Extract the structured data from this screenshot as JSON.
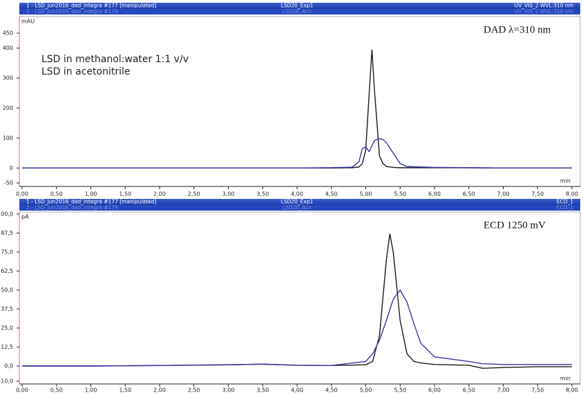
{
  "chart_data": [
    {
      "type": "line",
      "headers": [
        {
          "left": "1 - LSD_jun2016_dad_integra #177 [manipulated]",
          "center": "LSD20_Exp1",
          "right": "UV_VIS_2 WVL:310 nm"
        },
        {
          "left": "2 - LSD_jun2016_dad_integra #179",
          "center": "LSD20_Acn",
          "right": "UV_VIS_2 WVL:310 nm"
        }
      ],
      "title": "DAD λ=310 nm",
      "y_unit": "mAU",
      "x_unit": "min",
      "x": [
        0,
        1,
        2,
        3,
        4,
        4.5,
        4.8,
        4.9,
        4.95,
        5.0,
        5.05,
        5.09,
        5.13,
        5.2,
        5.25,
        5.3,
        5.4,
        5.5,
        5.6,
        6,
        6.5,
        7,
        7.5,
        8
      ],
      "series": [
        {
          "name": "LSD in methanol:water 1:1 v/v",
          "color": "#1a1a1a",
          "values": [
            0,
            0,
            0,
            0,
            0,
            0,
            1,
            3,
            15,
            60,
            250,
            395,
            250,
            40,
            15,
            5,
            2,
            1,
            1,
            1,
            1,
            0,
            0,
            0
          ]
        },
        {
          "name": "LSD in acetonitrile",
          "color": "#3535a8",
          "values": [
            0,
            0,
            0,
            0,
            0,
            1,
            3,
            20,
            65,
            70,
            55,
            75,
            92,
            98,
            95,
            85,
            50,
            15,
            5,
            2,
            1,
            0,
            0,
            0
          ]
        }
      ],
      "xlim": [
        0,
        8
      ],
      "xticks": [
        {
          "value": 0,
          "label": "0,00"
        },
        {
          "value": 0.5,
          "label": "0,50"
        },
        {
          "value": 1,
          "label": "1,00"
        },
        {
          "value": 1.5,
          "label": "1,50"
        },
        {
          "value": 2,
          "label": "2,00"
        },
        {
          "value": 2.5,
          "label": "2,50"
        },
        {
          "value": 3,
          "label": "3,00"
        },
        {
          "value": 3.5,
          "label": "3,50"
        },
        {
          "value": 4,
          "label": "4,00"
        },
        {
          "value": 4.5,
          "label": "4,50"
        },
        {
          "value": 5,
          "label": "5,00"
        },
        {
          "value": 5.5,
          "label": "5,50"
        },
        {
          "value": 6,
          "label": "6,00"
        },
        {
          "value": 6.5,
          "label": "6,50"
        },
        {
          "value": 7,
          "label": "7,00"
        },
        {
          "value": 7.5,
          "label": "7,50"
        },
        {
          "value": 8,
          "label": "8,00"
        }
      ],
      "ylim": [
        -50,
        450
      ],
      "yticks": [
        -50,
        0,
        100,
        200,
        300,
        400,
        450
      ]
    },
    {
      "type": "line",
      "headers": [
        {
          "left": "1 - LSD_jun2016_dad_integra #177 [manipulated]",
          "center": "LSD20_Exp1",
          "right": "ECD_1"
        },
        {
          "left": "2 - LSD_jun2016_dad_integra #179",
          "center": "LSD20_Acn",
          "right": "ECD_1"
        }
      ],
      "title": "ECD 1250  mV",
      "y_unit": "pA",
      "x_unit": "min",
      "x": [
        0,
        1,
        2,
        3,
        3.5,
        4,
        4.5,
        5.0,
        5.1,
        5.2,
        5.3,
        5.35,
        5.4,
        5.5,
        5.6,
        5.7,
        5.8,
        6.0,
        6.5,
        6.7,
        7.0,
        7.5,
        8
      ],
      "series": [
        {
          "name": "LSD in methanol:water 1:1 v/v",
          "color": "#1a1a1a",
          "values": [
            0,
            0,
            0.3,
            0.8,
            1.2,
            0.5,
            0.3,
            0.8,
            3,
            20,
            70,
            87,
            75,
            30,
            8,
            3,
            2,
            1,
            0.5,
            -1.5,
            -1,
            -0.5,
            -0.5
          ]
        },
        {
          "name": "LSD in acetonitrile",
          "color": "#3535a8",
          "values": [
            0,
            0,
            0.3,
            0.8,
            1.2,
            0.5,
            0.3,
            3,
            8,
            17,
            30,
            37,
            44,
            50,
            42,
            28,
            15,
            6,
            3,
            1.5,
            1,
            1,
            1
          ]
        }
      ],
      "xlim": [
        0,
        8
      ],
      "xticks": [
        {
          "value": 0,
          "label": "0,00"
        },
        {
          "value": 0.5,
          "label": "0,50"
        },
        {
          "value": 1,
          "label": "1,00"
        },
        {
          "value": 1.5,
          "label": "1,50"
        },
        {
          "value": 2,
          "label": "2,00"
        },
        {
          "value": 2.5,
          "label": "2,50"
        },
        {
          "value": 3,
          "label": "3,00"
        },
        {
          "value": 3.5,
          "label": "3,50"
        },
        {
          "value": 4,
          "label": "4,00"
        },
        {
          "value": 4.5,
          "label": "4,50"
        },
        {
          "value": 5,
          "label": "5,00"
        },
        {
          "value": 5.5,
          "label": "5,50"
        },
        {
          "value": 6,
          "label": "6,00"
        },
        {
          "value": 6.5,
          "label": "6,50"
        },
        {
          "value": 7,
          "label": "7,00"
        },
        {
          "value": 7.5,
          "label": "7,50"
        },
        {
          "value": 8,
          "label": "8,00"
        }
      ],
      "ylim": [
        -10,
        100
      ],
      "yticks": [
        {
          "value": -10,
          "label": "-10,0"
        },
        {
          "value": 0,
          "label": "0,0"
        },
        {
          "value": 12.5,
          "label": "12,5"
        },
        {
          "value": 25,
          "label": "25,0"
        },
        {
          "value": 37.5,
          "label": "37,5"
        },
        {
          "value": 50,
          "label": "50,0"
        },
        {
          "value": 62.5,
          "label": "62,5"
        },
        {
          "value": 75,
          "label": "75,0"
        },
        {
          "value": 87.5,
          "label": "87,5"
        },
        {
          "value": 100,
          "label": "100,0"
        }
      ]
    }
  ]
}
